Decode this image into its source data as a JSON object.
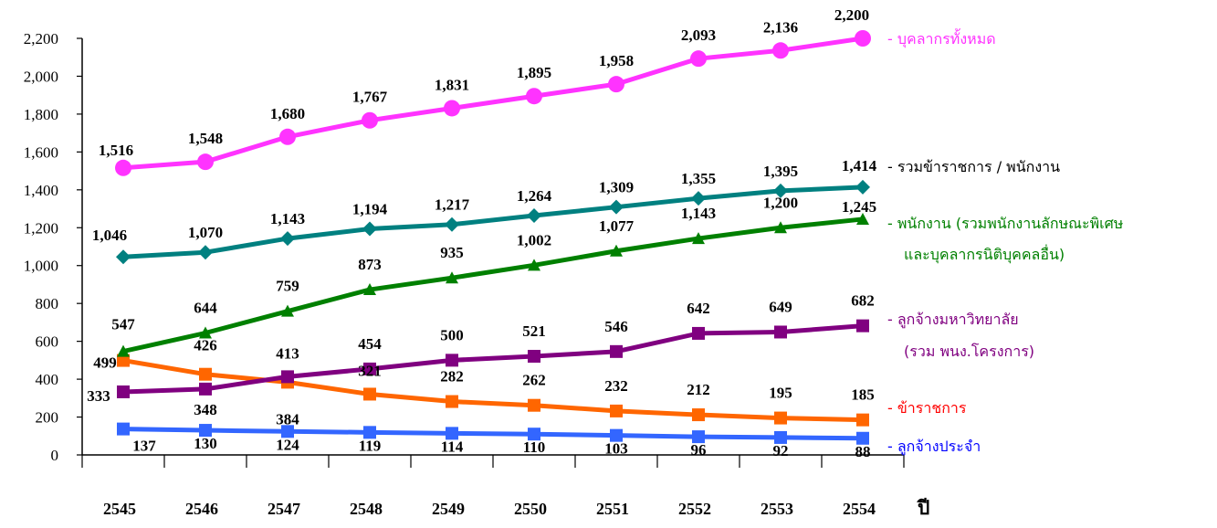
{
  "chart_data": {
    "type": "line",
    "title": "",
    "xlabel": "ปี",
    "ylabel": "",
    "ylim": [
      0,
      2200
    ],
    "yticks": [
      "0",
      "200",
      "400",
      "600",
      "800",
      "1,000",
      "1,200",
      "1,400",
      "1,600",
      "1,800",
      "2,000",
      "2,200"
    ],
    "grid": false,
    "legend": "right, beside series ends",
    "categories": [
      "2545",
      "2546",
      "2547",
      "2548",
      "2549",
      "2550",
      "2551",
      "2552",
      "2553",
      "2554"
    ],
    "series": [
      {
        "key": "total",
        "name": "- บุคลากรทั้งหมด",
        "name_lines": [
          "- บุคลากรทั้งหมด"
        ],
        "color": "#ff33ff",
        "legend_color": "#ff33ff",
        "marker": "circle",
        "values": [
          1516,
          1548,
          1680,
          1767,
          1831,
          1895,
          1958,
          2093,
          2136,
          2200
        ],
        "labels": [
          "1,516",
          "1,548",
          "1,680",
          "1,767",
          "1,831",
          "1,895",
          "1,958",
          "2,093",
          "2,136",
          "2,200"
        ]
      },
      {
        "key": "civil_staff",
        "name": "- รวมข้าราชการ / พนักงาน",
        "name_lines": [
          "- รวมข้าราชการ / พนักงาน"
        ],
        "color": "#008080",
        "legend_color": "#000000",
        "marker": "diamond",
        "values": [
          1046,
          1070,
          1143,
          1194,
          1217,
          1264,
          1309,
          1355,
          1395,
          1414
        ],
        "labels": [
          "1,046",
          "1,070",
          "1,143",
          "1,194",
          "1,217",
          "1,264",
          "1,309",
          "1,355",
          "1,395",
          "1,414"
        ]
      },
      {
        "key": "employees",
        "name": "- พนักงาน (รวมพนักงานลักษณะพิเศษ และบุคลากรนิติบุคคลอื่น)",
        "name_lines": [
          "- พนักงาน (รวมพนักงานลักษณะพิเศษ",
          "และบุคลากรนิติบุคคลอื่น)"
        ],
        "color": "#008000",
        "legend_color": "#008000",
        "marker": "triangle",
        "values": [
          547,
          644,
          759,
          873,
          935,
          1002,
          1077,
          1143,
          1200,
          1245
        ],
        "labels": [
          "547",
          "644",
          "759",
          "873",
          "935",
          "1,002",
          "1,077",
          "1,143",
          "1,200",
          "1,245"
        ]
      },
      {
        "key": "univ_employees",
        "name": "- ลูกจ้างมหาวิทยาลัย (รวม พนง.โครงการ)",
        "name_lines": [
          "- ลูกจ้างมหาวิทยาลัย",
          "(รวม พนง.โครงการ)"
        ],
        "color": "#800080",
        "legend_color": "#800080",
        "marker": "square",
        "values": [
          333,
          348,
          413,
          454,
          500,
          521,
          546,
          642,
          649,
          682
        ],
        "labels": [
          "333",
          "348",
          "413",
          "454",
          "500",
          "521",
          "546",
          "642",
          "649",
          "682"
        ]
      },
      {
        "key": "civil_servants",
        "name": "- ข้าราชการ",
        "name_lines": [
          "- ข้าราชการ"
        ],
        "color": "#ff6600",
        "legend_color": "#ff0000",
        "marker": "square",
        "values": [
          499,
          426,
          384,
          321,
          282,
          262,
          232,
          212,
          195,
          185
        ],
        "labels": [
          "499",
          "426",
          "384",
          "321",
          "282",
          "262",
          "232",
          "212",
          "195",
          "185"
        ]
      },
      {
        "key": "permanent",
        "name": "- ลูกจ้างประจำ",
        "name_lines": [
          "- ลูกจ้างประจำ"
        ],
        "color": "#3366ff",
        "legend_color": "#0000ff",
        "marker": "square",
        "values": [
          137,
          130,
          124,
          119,
          114,
          110,
          103,
          96,
          92,
          88
        ],
        "labels": [
          "137",
          "130",
          "124",
          "119",
          "114",
          "110",
          "103",
          "96",
          "92",
          "88"
        ]
      }
    ]
  }
}
